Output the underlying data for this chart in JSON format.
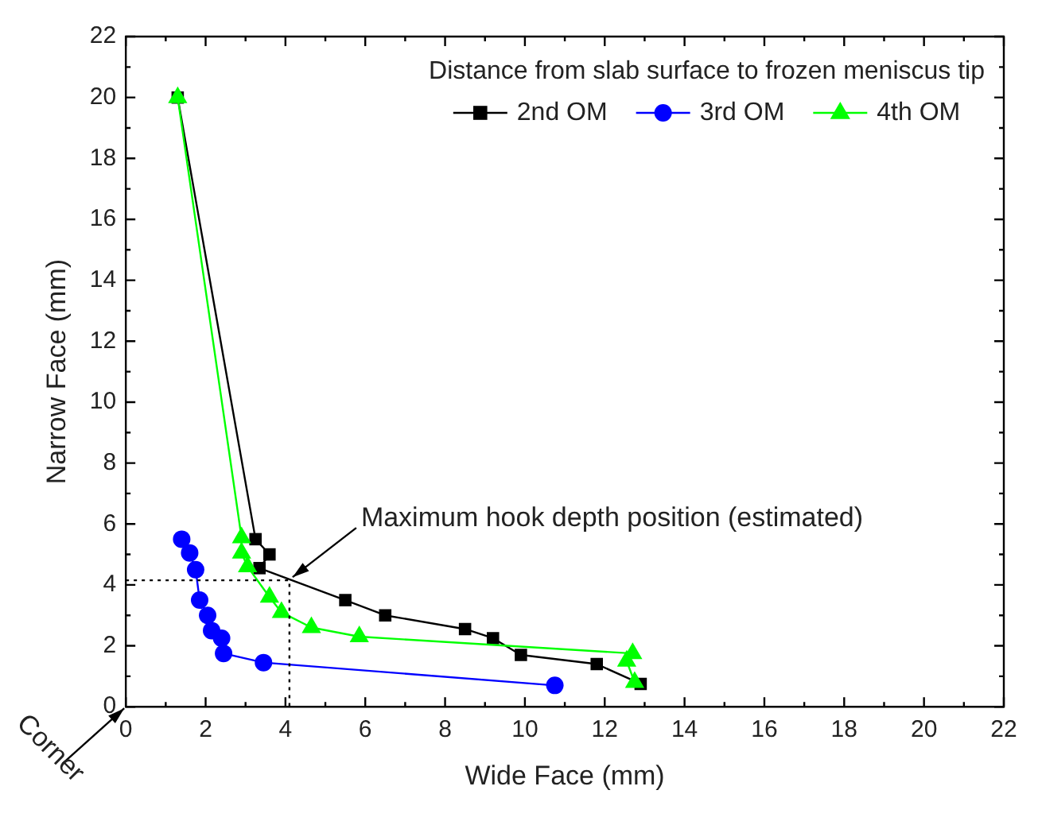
{
  "chart_data": {
    "type": "line",
    "xlabel": "Wide Face (mm)",
    "ylabel": "Narrow Face (mm)",
    "legend_title": "Distance from slab surface to frozen meniscus tip",
    "legend": "top right",
    "grid": false,
    "line_style": "solid",
    "xlim": [
      0,
      22
    ],
    "xticks": [
      0,
      2,
      4,
      6,
      8,
      10,
      12,
      14,
      16,
      18,
      20,
      22
    ],
    "ylim": [
      0,
      22
    ],
    "yticks": [
      0,
      2,
      4,
      6,
      8,
      10,
      12,
      14,
      16,
      18,
      20,
      22
    ],
    "series": [
      {
        "name": "2nd OM",
        "color": "#000000",
        "marker": "square",
        "x": [
          1.3,
          3.25,
          3.6,
          3.35,
          5.5,
          6.5,
          8.5,
          9.2,
          9.9,
          11.8,
          12.9
        ],
        "values": [
          20,
          5.5,
          5.0,
          4.55,
          3.5,
          3.0,
          2.55,
          2.25,
          1.7,
          1.4,
          0.75
        ]
      },
      {
        "name": "3rd OM",
        "color": "#0000ff",
        "marker": "circle",
        "x": [
          1.4,
          1.6,
          1.75,
          1.85,
          2.05,
          2.15,
          2.4,
          2.45,
          3.45,
          10.75
        ],
        "values": [
          5.5,
          5.05,
          4.5,
          3.5,
          3.0,
          2.5,
          2.25,
          1.75,
          1.45,
          0.7
        ]
      },
      {
        "name": "4th OM",
        "color": "#00ff00",
        "marker": "triangle",
        "x": [
          1.3,
          2.9,
          2.9,
          3.05,
          3.6,
          3.9,
          4.65,
          5.85,
          12.7,
          12.55,
          12.75
        ],
        "values": [
          20,
          5.55,
          5.05,
          4.6,
          3.6,
          3.1,
          2.6,
          2.3,
          1.75,
          1.5,
          0.8
        ]
      },
      {
        "type": "line",
        "color": "#000000",
        "marker": "none",
        "line_style": "dotted",
        "x": [
          0,
          4.1,
          4.1
        ],
        "values": [
          4.15,
          4.15,
          0
        ]
      }
    ],
    "annotations": [
      {
        "text": "Maximum hook depth position (estimated)",
        "x": 4.1,
        "y": 4.15
      },
      "Corner"
    ]
  }
}
